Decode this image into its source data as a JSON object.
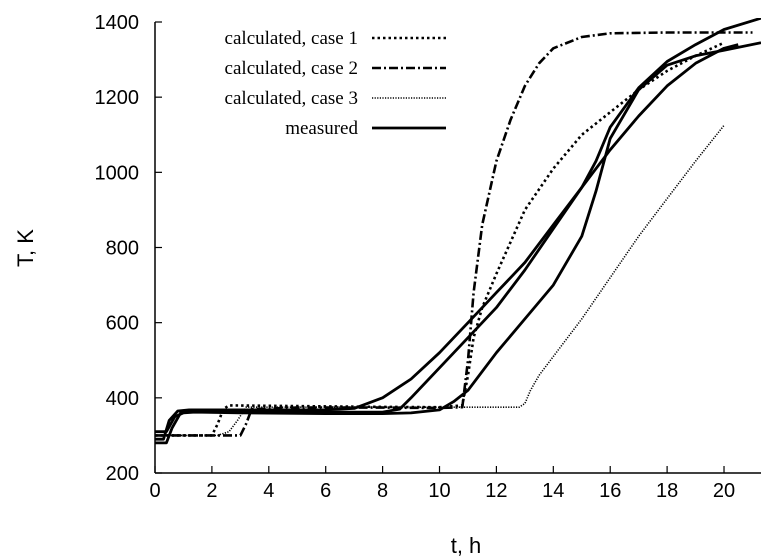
{
  "chart_data": {
    "type": "line",
    "xlabel": "t, h",
    "ylabel": "T, K",
    "xlim": [
      0,
      21.3
    ],
    "ylim": [
      200,
      1400
    ],
    "xticks": [
      "0",
      "2",
      "4",
      "6",
      "8",
      "10",
      "12",
      "14",
      "16",
      "18",
      "20"
    ],
    "yticks": [
      "200",
      "400",
      "600",
      "800",
      "1000",
      "1200",
      "1400"
    ],
    "grid": false,
    "legend_position": "top-left",
    "series": [
      {
        "name": "calculated, case 1",
        "style": "dotted",
        "x": [
          0,
          2.0,
          2.2,
          2.4,
          2.6,
          5,
          8,
          10,
          10.8,
          11.0,
          11.2,
          11.5,
          12,
          13,
          14,
          15,
          16,
          17,
          18,
          19,
          20
        ],
        "y": [
          300,
          300,
          330,
          370,
          380,
          378,
          376,
          375,
          380,
          460,
          560,
          640,
          730,
          900,
          1010,
          1100,
          1160,
          1220,
          1270,
          1310,
          1345
        ]
      },
      {
        "name": "calculated, case 2",
        "style": "dashdot",
        "x": [
          0,
          3.0,
          3.2,
          3.4,
          5,
          8,
          10,
          10.8,
          11.0,
          11.2,
          11.5,
          12,
          12.5,
          13,
          13.5,
          14,
          15,
          16,
          18,
          20,
          21
        ],
        "y": [
          300,
          300,
          330,
          370,
          374,
          374,
          373,
          375,
          500,
          680,
          860,
          1030,
          1140,
          1230,
          1290,
          1330,
          1360,
          1370,
          1372,
          1372,
          1372
        ]
      },
      {
        "name": "calculated, case 3",
        "style": "densedot",
        "x": [
          0,
          2.2,
          2.6,
          2.9,
          3.2,
          5,
          8,
          10,
          12,
          12.8,
          13.0,
          13.2,
          13.5,
          14,
          15,
          16,
          17,
          18,
          19,
          20
        ],
        "y": [
          300,
          300,
          310,
          340,
          375,
          375,
          375,
          375,
          375,
          375,
          385,
          420,
          460,
          510,
          610,
          720,
          830,
          930,
          1030,
          1125
        ]
      },
      {
        "name": "measured",
        "style": "solid",
        "x": [
          0,
          0.4,
          0.6,
          0.9,
          1.3,
          3,
          6,
          7,
          8,
          9,
          10,
          11,
          12,
          13,
          14,
          15,
          16,
          17,
          18,
          19,
          20,
          20.5
        ],
        "y": [
          280,
          280,
          320,
          360,
          368,
          368,
          368,
          372,
          400,
          450,
          520,
          600,
          680,
          760,
          860,
          960,
          1060,
          1150,
          1230,
          1290,
          1330,
          1340
        ]
      },
      {
        "name": "",
        "style": "solid",
        "x": [
          0,
          0.3,
          0.5,
          0.8,
          1.2,
          3,
          6,
          8,
          8.6,
          9,
          10,
          11,
          12,
          13,
          14,
          15,
          15.5,
          16,
          17,
          18,
          19,
          20,
          21.3
        ],
        "y": [
          290,
          290,
          340,
          365,
          368,
          366,
          362,
          362,
          370,
          400,
          480,
          560,
          640,
          740,
          850,
          960,
          1030,
          1120,
          1225,
          1295,
          1340,
          1380,
          1410
        ]
      },
      {
        "name": "",
        "style": "solid",
        "x": [
          0,
          0.4,
          0.7,
          1.0,
          1.4,
          3,
          6,
          8,
          9,
          10,
          10.5,
          11,
          12,
          13,
          14,
          15,
          15.5,
          16,
          17,
          18,
          19,
          20,
          21.3
        ],
        "y": [
          310,
          310,
          350,
          360,
          362,
          360,
          358,
          358,
          360,
          368,
          390,
          420,
          520,
          610,
          700,
          830,
          950,
          1090,
          1220,
          1285,
          1310,
          1325,
          1345
        ]
      }
    ]
  }
}
